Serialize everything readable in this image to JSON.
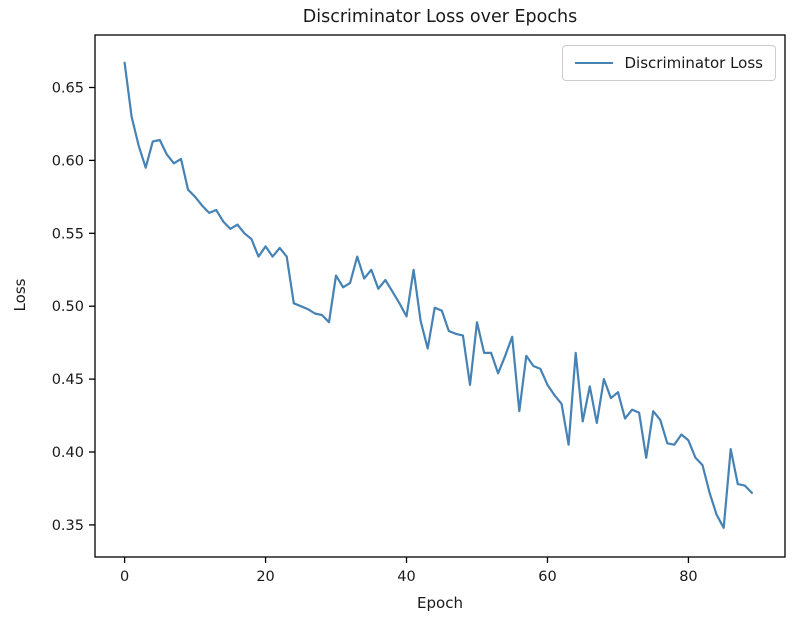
{
  "figure": {
    "title": "Discriminator Loss over Epochs",
    "xlabel": "Epoch",
    "ylabel": "Loss",
    "legend_label": "Discriminator Loss"
  },
  "chart_data": {
    "type": "line",
    "title": "Discriminator Loss over Epochs",
    "xlabel": "Epoch",
    "ylabel": "Loss",
    "legend": [
      "Discriminator Loss"
    ],
    "legend_position": "upper right",
    "grid": false,
    "line_color": "#4682b4",
    "axis_color": "#000000",
    "xlim": [
      -4.2,
      93.7
    ],
    "ylim": [
      0.328,
      0.686
    ],
    "x_ticks": [
      0,
      20,
      40,
      60,
      80
    ],
    "y_ticks": [
      0.35,
      0.4,
      0.45,
      0.5,
      0.55,
      0.6,
      0.65
    ],
    "x": [
      0,
      1,
      2,
      3,
      4,
      5,
      6,
      7,
      8,
      9,
      10,
      11,
      12,
      13,
      14,
      15,
      16,
      17,
      18,
      19,
      20,
      21,
      22,
      23,
      24,
      25,
      26,
      27,
      28,
      29,
      30,
      31,
      32,
      33,
      34,
      35,
      36,
      37,
      38,
      39,
      40,
      41,
      42,
      43,
      44,
      45,
      46,
      47,
      48,
      49,
      50,
      51,
      52,
      53,
      54,
      55,
      56,
      57,
      58,
      59,
      60,
      61,
      62,
      63,
      64,
      65,
      66,
      67,
      68,
      69,
      70,
      71,
      72,
      73,
      74,
      75,
      76,
      77,
      78,
      79,
      80,
      81,
      82,
      83,
      84,
      85,
      86,
      87,
      88,
      89
    ],
    "series": [
      {
        "name": "Discriminator Loss",
        "color": "#4682b4",
        "values": [
          0.667,
          0.63,
          0.61,
          0.595,
          0.613,
          0.614,
          0.604,
          0.598,
          0.601,
          0.58,
          0.575,
          0.569,
          0.564,
          0.566,
          0.558,
          0.553,
          0.556,
          0.55,
          0.546,
          0.534,
          0.541,
          0.534,
          0.54,
          0.534,
          0.502,
          0.5,
          0.498,
          0.495,
          0.494,
          0.489,
          0.521,
          0.513,
          0.516,
          0.534,
          0.519,
          0.525,
          0.512,
          0.518,
          0.51,
          0.502,
          0.493,
          0.525,
          0.49,
          0.471,
          0.499,
          0.497,
          0.483,
          0.481,
          0.48,
          0.446,
          0.489,
          0.468,
          0.468,
          0.454,
          0.466,
          0.479,
          0.428,
          0.466,
          0.459,
          0.457,
          0.446,
          0.439,
          0.433,
          0.405,
          0.468,
          0.421,
          0.445,
          0.42,
          0.45,
          0.437,
          0.441,
          0.423,
          0.429,
          0.427,
          0.396,
          0.428,
          0.422,
          0.406,
          0.405,
          0.412,
          0.408,
          0.396,
          0.391,
          0.372,
          0.357,
          0.348,
          0.402,
          0.378,
          0.377,
          0.372
        ]
      }
    ]
  }
}
